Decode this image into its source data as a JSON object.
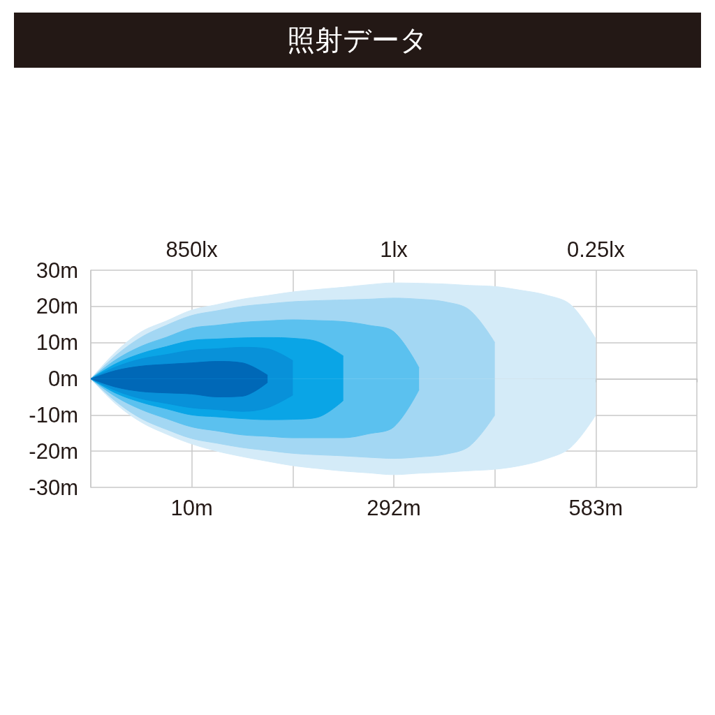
{
  "chart_data": {
    "type": "area",
    "title": "照射データ",
    "annotations": [
      "850lx",
      "1lx",
      "0.25lx"
    ],
    "categories": [
      null,
      null,
      null,
      null,
      "10m",
      null,
      null,
      null,
      null,
      null,
      null,
      null,
      "292m",
      null,
      null,
      null,
      null,
      null,
      null,
      null,
      "583m",
      null,
      null,
      null,
      null
    ],
    "ylim": [
      -30,
      30
    ],
    "yticks": [
      {
        "value": 30,
        "label": "30m"
      },
      {
        "value": 20,
        "label": "20m"
      },
      {
        "value": 10,
        "label": "10m"
      },
      {
        "value": 0,
        "label": "0m"
      },
      {
        "value": -10,
        "label": "-10m"
      },
      {
        "value": -20,
        "label": "-20m"
      },
      {
        "value": -30,
        "label": "-30m"
      }
    ],
    "grid": true,
    "series": [
      {
        "color": "#d4ebf8",
        "values": [
          0,
          7.5,
          13,
          16,
          19,
          20.5,
          22,
          23,
          24,
          24.7,
          25.3,
          26,
          26.5,
          26.4,
          26.2,
          25.8,
          25.5,
          24.5,
          23.2,
          20.5,
          11,
          null,
          null,
          null,
          null
        ]
      },
      {
        "color": "#d4ebf8",
        "values": [
          0,
          -7,
          -12,
          -15.3,
          -18,
          -20,
          -21.5,
          -22.8,
          -24,
          -24.8,
          -25.5,
          -26,
          -26.5,
          -26.1,
          -25.8,
          -25.4,
          -25,
          -24,
          -22.2,
          -19,
          -10,
          null,
          null,
          null,
          null
        ]
      },
      {
        "color": "#a3d7f3",
        "values": [
          0,
          6.5,
          11.5,
          14.8,
          17.5,
          18.8,
          20,
          20.7,
          21.3,
          21.6,
          21.8,
          22,
          22.3,
          22,
          21.3,
          19,
          10,
          null,
          null,
          null,
          null,
          null,
          null,
          null,
          null
        ]
      },
      {
        "color": "#a3d7f3",
        "values": [
          0,
          -6.3,
          -11,
          -14,
          -16.5,
          -17.8,
          -19,
          -19.8,
          -20.6,
          -21,
          -21.3,
          -21.7,
          -22,
          -21.6,
          -20.9,
          -18.6,
          -10,
          null,
          null,
          null,
          null,
          null,
          null,
          null,
          null
        ]
      },
      {
        "color": "#5bc1ef",
        "values": [
          0,
          5.3,
          9,
          11.5,
          14,
          14.8,
          15.6,
          16,
          16.3,
          16.1,
          15.8,
          14.8,
          13,
          3,
          null,
          null,
          null,
          null,
          null,
          null,
          null,
          null,
          null,
          null,
          null
        ]
      },
      {
        "color": "#5bc1ef",
        "values": [
          0,
          -5,
          -8.5,
          -11,
          -13.3,
          -14.4,
          -15.5,
          -15.9,
          -16.3,
          -16.3,
          -16.3,
          -15.2,
          -13.3,
          -3,
          null,
          null,
          null,
          null,
          null,
          null,
          null,
          null,
          null,
          null,
          null
        ]
      },
      {
        "color": "#0aa5e6",
        "values": [
          0,
          4.2,
          7,
          8.9,
          10.6,
          11,
          11.3,
          11.4,
          11.2,
          10.2,
          6.3,
          null,
          null,
          null,
          null,
          null,
          null,
          null,
          null,
          null,
          null,
          null,
          null,
          null,
          null
        ]
      },
      {
        "color": "#0aa5e6",
        "values": [
          0,
          -4,
          -6.5,
          -8.3,
          -10,
          -10.5,
          -11,
          -11.3,
          -11.2,
          -10.6,
          -6,
          null,
          null,
          null,
          null,
          null,
          null,
          null,
          null,
          null,
          null,
          null,
          null,
          null,
          null
        ]
      },
      {
        "color": "#0891d9",
        "values": [
          0,
          3.3,
          5.5,
          6.7,
          7.9,
          8.3,
          8.7,
          8.3,
          5,
          null,
          null,
          null,
          null,
          null,
          null,
          null,
          null,
          null,
          null,
          null,
          null,
          null,
          null,
          null,
          null
        ]
      },
      {
        "color": "#0891d9",
        "values": [
          0,
          -3.3,
          -5.5,
          -6.8,
          -8,
          -8.5,
          -9,
          -8,
          -4.5,
          null,
          null,
          null,
          null,
          null,
          null,
          null,
          null,
          null,
          null,
          null,
          null,
          null,
          null,
          null,
          null
        ]
      },
      {
        "color": "#0068b7",
        "values": [
          0,
          2.3,
          3.5,
          4,
          4.4,
          4.8,
          4.4,
          1,
          null,
          null,
          null,
          null,
          null,
          null,
          null,
          null,
          null,
          null,
          null,
          null,
          null,
          null,
          null,
          null,
          null
        ]
      },
      {
        "color": "#0068b7",
        "values": [
          0,
          -2.3,
          -3.5,
          -3.9,
          -4.2,
          -5,
          -4.8,
          -1,
          null,
          null,
          null,
          null,
          null,
          null,
          null,
          null,
          null,
          null,
          null,
          null,
          null,
          null,
          null,
          null,
          null
        ]
      }
    ]
  }
}
